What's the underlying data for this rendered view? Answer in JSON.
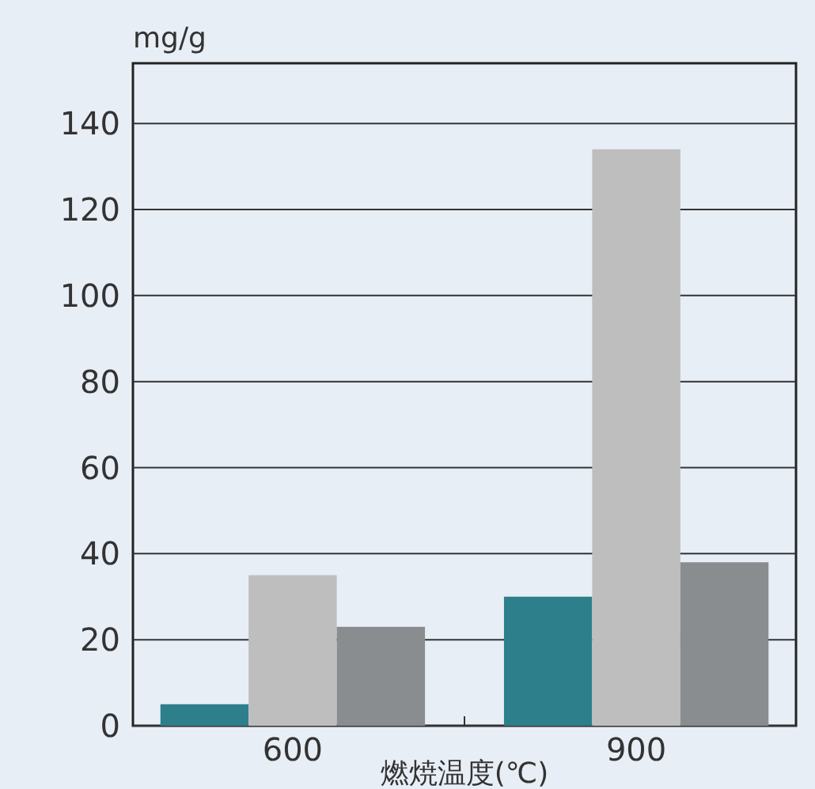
{
  "chart_data": {
    "type": "bar",
    "ylabel": "mg/g",
    "xlabel": "燃焼温度(℃)",
    "categories": [
      "600",
      "900"
    ],
    "series": [
      {
        "color": "#2e7f8c",
        "values": [
          5,
          30
        ]
      },
      {
        "color": "#bebebe",
        "values": [
          35,
          134
        ]
      },
      {
        "color": "#8a8d8f",
        "values": [
          23,
          38
        ]
      }
    ],
    "ylim": [
      0,
      154
    ],
    "yticks": [
      0,
      20,
      40,
      60,
      80,
      100,
      120,
      140
    ],
    "grid": "y"
  }
}
